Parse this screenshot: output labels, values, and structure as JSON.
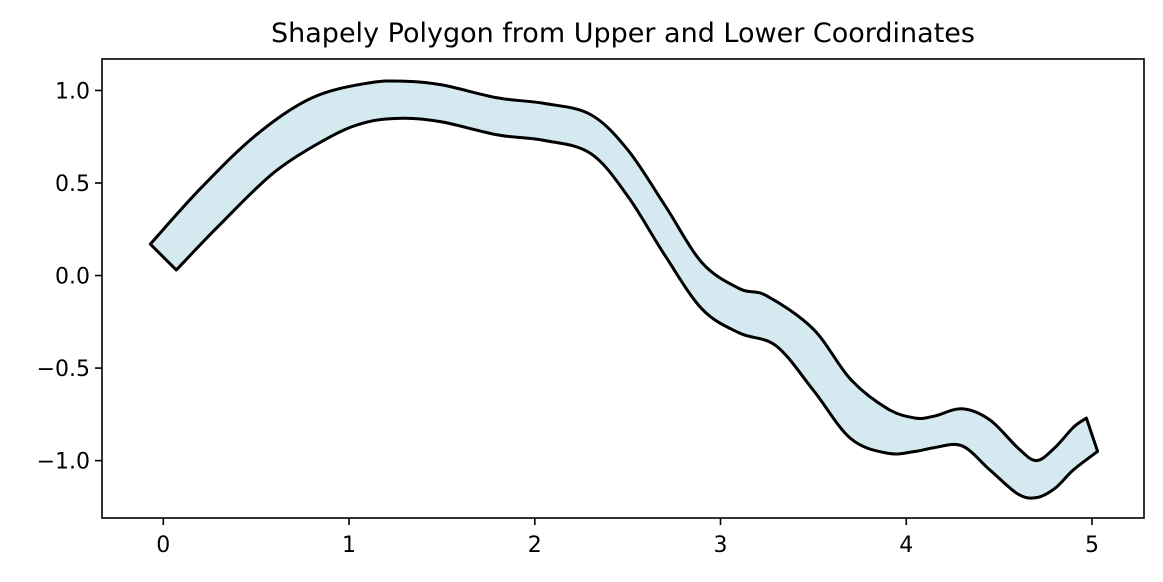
{
  "chart_data": {
    "type": "area",
    "title": "Shapely Polygon from Upper and Lower Coordinates",
    "xlabel": "",
    "ylabel": "",
    "xlim": [
      -0.33,
      5.28
    ],
    "ylim": [
      -1.31,
      1.17
    ],
    "xticks": [
      0,
      1,
      2,
      3,
      4,
      5
    ],
    "xtick_labels": [
      "0",
      "1",
      "2",
      "3",
      "4",
      "5"
    ],
    "yticks": [
      1.0,
      0.5,
      0.0,
      -0.5,
      -1.0
    ],
    "ytick_labels": [
      "1.0",
      "0.5",
      "0.0",
      "−0.5",
      "−1.0"
    ],
    "grid": false,
    "fill_color": "#d5eaf0",
    "edge_color": "#000000",
    "series": [
      {
        "x": [
          -0.07,
          0.2,
          0.5,
          0.8,
          1.1,
          1.3,
          1.5,
          1.8,
          2.05,
          2.3,
          2.5,
          2.7,
          2.9,
          3.1,
          3.25,
          3.5,
          3.7,
          3.9,
          4.05,
          4.15,
          4.3,
          4.45,
          4.6,
          4.7,
          4.8,
          4.9,
          4.97
        ],
        "upper": [
          0.17,
          0.47,
          0.76,
          0.96,
          1.04,
          1.05,
          1.03,
          0.96,
          0.93,
          0.87,
          0.68,
          0.38,
          0.07,
          -0.07,
          -0.11,
          -0.29,
          -0.56,
          -0.72,
          -0.77,
          -0.76,
          -0.72,
          -0.78,
          -0.93,
          -1.0,
          -0.93,
          -0.82,
          -0.77
        ]
      },
      {
        "x": [
          0.07,
          0.3,
          0.6,
          0.9,
          1.1,
          1.3,
          1.5,
          1.8,
          2.05,
          2.3,
          2.5,
          2.7,
          2.9,
          3.1,
          3.3,
          3.5,
          3.7,
          3.9,
          4.05,
          4.15,
          4.3,
          4.45,
          4.6,
          4.7,
          4.8,
          4.9,
          5.03
        ],
        "lower": [
          0.03,
          0.27,
          0.56,
          0.75,
          0.83,
          0.85,
          0.83,
          0.76,
          0.73,
          0.66,
          0.43,
          0.11,
          -0.18,
          -0.31,
          -0.38,
          -0.62,
          -0.88,
          -0.96,
          -0.95,
          -0.93,
          -0.92,
          -1.05,
          -1.18,
          -1.2,
          -1.15,
          -1.05,
          -0.95
        ]
      }
    ]
  }
}
